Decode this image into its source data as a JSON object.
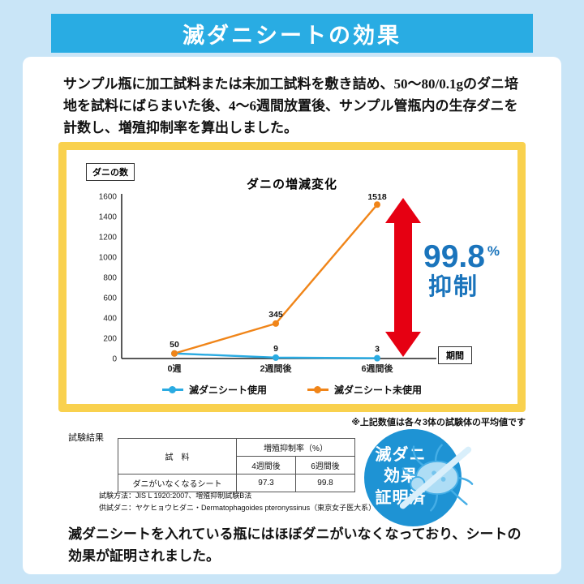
{
  "colors": {
    "page_bg": "#c9e5f7",
    "header_bg": "#29ace3",
    "frame_yellow": "#f9d14e",
    "arrow_red": "#e60012",
    "annotation_blue": "#1a74bc",
    "badge_blue": "#1e93d4"
  },
  "header": {
    "title": "滅ダニシートの効果"
  },
  "intro": {
    "text": "サンプル瓶に加工試料または未加工試料を敷き詰め、50～80/0.1gのダニ培地を試料にばらまいた後、4～6週間放置後、サンプル管瓶内の生存ダニを計数し、増殖抑制率を算出しました。"
  },
  "chart_data": {
    "type": "line",
    "title": "ダニの増減変化",
    "y_axis_label": "ダニの数",
    "x_axis_label": "期間",
    "categories": [
      "0週",
      "2週間後",
      "6週間後"
    ],
    "y_ticks": [
      0,
      200,
      400,
      600,
      800,
      1000,
      1200,
      1400,
      1600
    ],
    "ylim": [
      0,
      1600
    ],
    "grid": false,
    "legend_position": "bottom",
    "series": [
      {
        "name": "滅ダニシート使用",
        "color": "#2aabe2",
        "values": [
          50,
          9,
          3
        ]
      },
      {
        "name": "滅ダニシート未使用",
        "color": "#f08519",
        "values": [
          50,
          345,
          1518
        ]
      }
    ],
    "annotation": {
      "value": "99.8",
      "unit": "%",
      "label": "抑制"
    },
    "note": "※上記数値は各々3体の試験体の平均値です"
  },
  "results": {
    "label": "試験結果",
    "table": {
      "col1_header": "試　料",
      "group_header": "増殖抑制率（%）",
      "sub_headers": [
        "4週間後",
        "6週間後"
      ],
      "rows": [
        {
          "sample": "ダニがいなくなるシート",
          "values": [
            "97.3",
            "99.8"
          ]
        }
      ]
    },
    "notes": [
      "試験方法：JIS L 1920:2007、増殖抑制試験B法",
      "供試ダニ：ヤケヒョウヒダニ・Dermatophagoides pteronyssinus（東京女子医大系）"
    ],
    "badge": {
      "lines": [
        "滅ダニ",
        "効果",
        "証明済"
      ]
    }
  },
  "conclusion": {
    "text": "滅ダニシートを入れている瓶にはほぼダニがいなくなっており、シートの効果が証明されました。"
  }
}
